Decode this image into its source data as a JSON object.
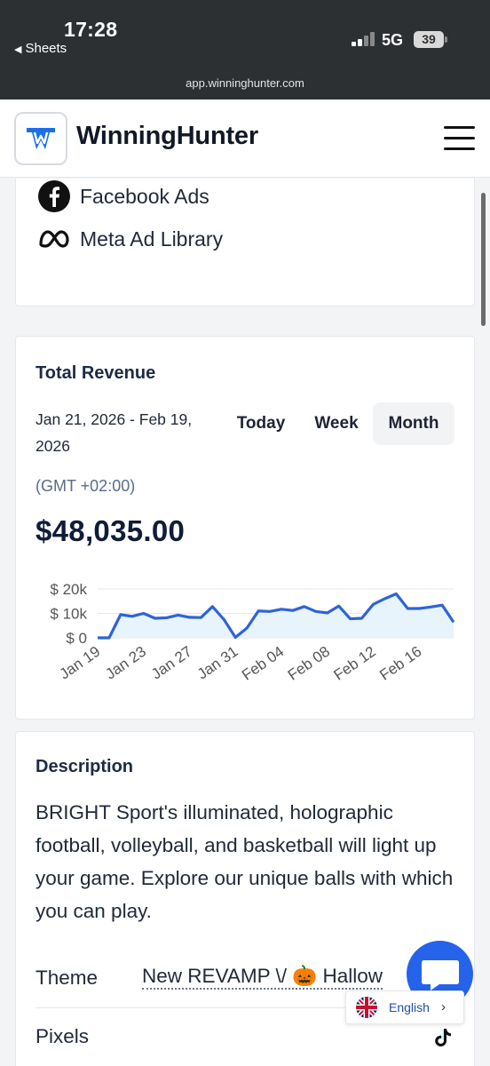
{
  "status_bar": {
    "time": "17:28",
    "back_app": "Sheets",
    "network": "5G",
    "battery": "39",
    "url": "app.winninghunter.com"
  },
  "header": {
    "brand": "WinningHunter",
    "accent_color": "#1d6ee8"
  },
  "ad_sources": [
    {
      "label": "Facebook Ads",
      "icon": "facebook-icon"
    },
    {
      "label": "Meta Ad Library",
      "icon": "meta-icon"
    }
  ],
  "revenue_card": {
    "title": "Total Revenue",
    "date_range": "Jan 21, 2026 - Feb 19, 2026",
    "periods": [
      "Today",
      "Week",
      "Month"
    ],
    "active_period": "Month",
    "timezone": "(GMT +02:00)",
    "total": "$48,035.00"
  },
  "chart_data": {
    "type": "area",
    "title": "",
    "xlabel": "",
    "ylabel": "",
    "x_ticks": [
      "Jan 19",
      "Jan 23",
      "Jan 27",
      "Jan 31",
      "Feb 04",
      "Feb 08",
      "Feb 12",
      "Feb 16"
    ],
    "y_ticks": [
      "$ 0",
      "$ 10k",
      "$ 20k"
    ],
    "ylim": [
      0,
      20000
    ],
    "x": [
      "Jan 19",
      "Jan 20",
      "Jan 21",
      "Jan 22",
      "Jan 23",
      "Jan 24",
      "Jan 25",
      "Jan 26",
      "Jan 27",
      "Jan 28",
      "Jan 29",
      "Jan 30",
      "Jan 31",
      "Feb 01",
      "Feb 02",
      "Feb 03",
      "Feb 04",
      "Feb 05",
      "Feb 06",
      "Feb 07",
      "Feb 08",
      "Feb 09",
      "Feb 10",
      "Feb 11",
      "Feb 12",
      "Feb 13",
      "Feb 14",
      "Feb 15",
      "Feb 16",
      "Feb 17",
      "Feb 18",
      "Feb 19"
    ],
    "series": [
      {
        "values": [
          0,
          0,
          9500,
          8800,
          10000,
          8000,
          8200,
          9300,
          8400,
          8300,
          12800,
          7500,
          200,
          4000,
          11000,
          10800,
          11700,
          11200,
          12800,
          10800,
          10200,
          13000,
          7800,
          8000,
          13700,
          16000,
          18000,
          12000,
          12000,
          12600,
          13400,
          6400
        ]
      }
    ],
    "line_color": "#2f63d6",
    "fill_color": "#e8f4fb",
    "grid": true
  },
  "description": {
    "title": "Description",
    "text": "BRIGHT Sport's illuminated, holographic football, volleyball, and basketball will light up your game. Explore our unique balls with which you can play.",
    "theme_label": "Theme",
    "theme_value": "New REVAMP \\/ 🎃 Hallow",
    "pixels_label": "Pixels",
    "pixels_icon": "tiktok-icon"
  },
  "language": {
    "label": "English"
  }
}
